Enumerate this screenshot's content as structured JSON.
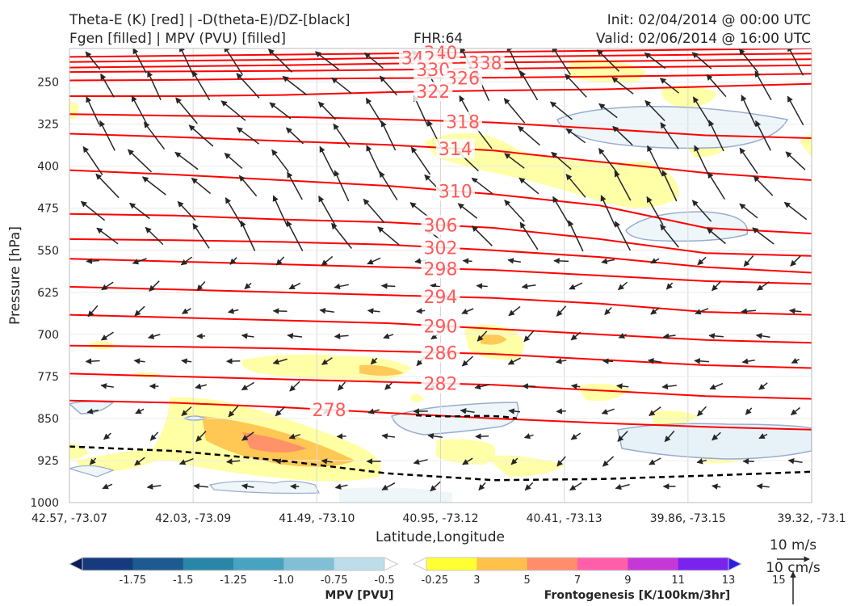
{
  "header": {
    "title_line1": "Theta-E (K) [red] | -D(theta-E)/DZ-[black]",
    "title_line2": "Fgen [filled] | MPV (PVU) [filled]",
    "fhr": "FHR:64",
    "init": "Init: 02/04/2014 @ 00:00 UTC",
    "valid": "Valid: 02/06/2014 @ 16:00 UTC"
  },
  "chart_data": {
    "type": "cross-section",
    "xlabel": "Latitude,Longitude",
    "ylabel": "Pressure [hPa]",
    "x_ticks": [
      "42.57, -73.07",
      "42.03, -73.09",
      "41.49, -73.10",
      "40.95, -73.12",
      "40.41, -73.13",
      "39.86, -73.15",
      "39.32, -73.1"
    ],
    "y_ticks": [
      250,
      325,
      400,
      475,
      550,
      625,
      700,
      775,
      850,
      925,
      1000
    ],
    "ylim": [
      1000,
      190
    ],
    "theta_e_contours": [
      {
        "label": "340",
        "p": [
          205,
          203,
          201,
          199,
          196,
          194,
          192,
          190
        ]
      },
      {
        "label": "342",
        "p": [
          214,
          212,
          210,
          207,
          205,
          203,
          201,
          199
        ]
      },
      {
        "label": "338",
        "p": [
          224,
          222,
          220,
          217,
          215,
          213,
          211,
          209
        ]
      },
      {
        "label": "330",
        "p": [
          232,
          231,
          230,
          228,
          226,
          224,
          222,
          220
        ]
      },
      {
        "label": "326",
        "p": [
          247,
          246,
          244,
          243,
          242,
          240,
          238,
          235
        ]
      },
      {
        "label": "322",
        "p": [
          275,
          275,
          273,
          268,
          265,
          263,
          258,
          253
        ]
      },
      {
        "label": "318",
        "p": [
          307,
          310,
          312,
          316,
          322,
          333,
          345,
          350
        ]
      },
      {
        "label": "314",
        "p": [
          342,
          348,
          355,
          362,
          372,
          392,
          412,
          425
        ]
      },
      {
        "label": "310",
        "p": [
          407,
          415,
          425,
          435,
          450,
          470,
          510,
          520
        ]
      },
      {
        "label": "306",
        "p": [
          485,
          488,
          495,
          500,
          510,
          530,
          555,
          560
        ]
      },
      {
        "label": "302",
        "p": [
          530,
          532,
          535,
          540,
          550,
          562,
          580,
          590
        ]
      },
      {
        "label": "298",
        "p": [
          565,
          570,
          575,
          580,
          585,
          595,
          605,
          610
        ]
      },
      {
        "label": "294",
        "p": [
          615,
          620,
          625,
          630,
          635,
          645,
          660,
          665
        ]
      },
      {
        "label": "290",
        "p": [
          665,
          670,
          675,
          680,
          690,
          700,
          710,
          715
        ]
      },
      {
        "label": "286",
        "p": [
          720,
          722,
          725,
          730,
          735,
          745,
          755,
          760
        ]
      },
      {
        "label": "282",
        "p": [
          770,
          775,
          780,
          785,
          790,
          800,
          810,
          815
        ]
      },
      {
        "label": "278",
        "p": [
          818,
          822,
          830,
          840,
          850,
          858,
          865,
          870
        ]
      }
    ],
    "stability_contour_pressures": [
      900,
      908,
      925,
      948,
      960,
      958,
      952,
      945
    ],
    "mpv_colorbar": {
      "title": "MPV [PVU]",
      "ticks": [
        "-1.75",
        "-1.5",
        "-1.25",
        "-1.0",
        "-0.75",
        "-0.5",
        "-0.25"
      ],
      "colors": [
        "#081d58",
        "#163a7d",
        "#1d5a8f",
        "#2a86a8",
        "#48a3c0",
        "#80bfd6",
        "#bcdde9",
        "#ffffff"
      ]
    },
    "fgen_colorbar": {
      "title": "Frontogenesis [K/100km/3hr]",
      "ticks": [
        "3",
        "5",
        "7",
        "9",
        "11",
        "13",
        "15"
      ],
      "colors": [
        "#ffffff",
        "#ffff33",
        "#ffc14a",
        "#ff8c6b",
        "#ff5fa8",
        "#c537d6",
        "#7a22ee",
        "#2a1ee8"
      ]
    },
    "reference_vectors": {
      "horizontal": "10 m/s",
      "vertical": "10 cm/s"
    },
    "colors": {
      "theta_e": "#ff0000",
      "stability": "#000000",
      "wind_barbs": "#262626"
    }
  }
}
